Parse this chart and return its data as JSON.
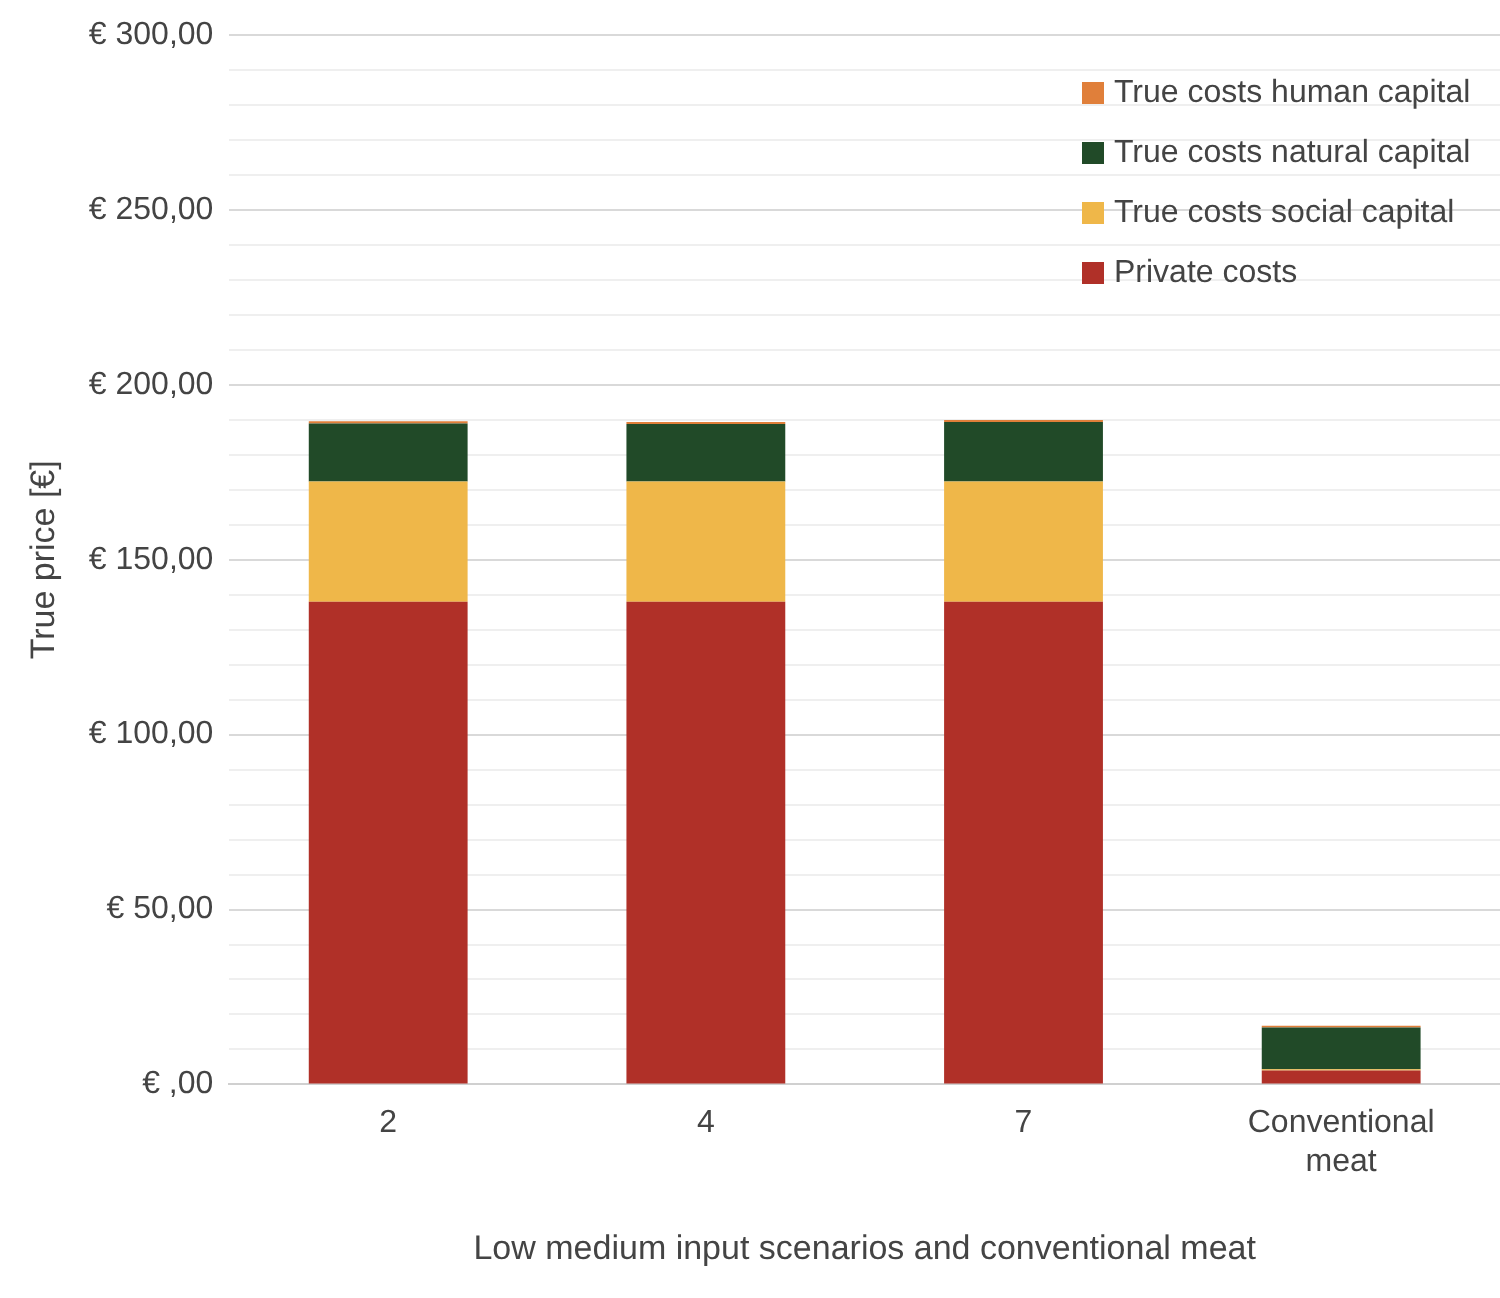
{
  "chart_data": {
    "type": "bar",
    "stacked": true,
    "xlabel": "Low medium input scenarios and conventional meat",
    "ylabel": "True price [€]",
    "categories": [
      "2",
      "4",
      "7",
      "Conventional meat"
    ],
    "series": [
      {
        "name": "Private costs",
        "color": "#b03028",
        "values": [
          138,
          138,
          138,
          4
        ]
      },
      {
        "name": "True costs social capital",
        "color": "#efb749",
        "values": [
          34.4,
          34.4,
          34.4,
          0.3
        ]
      },
      {
        "name": "True costs natural capital",
        "color": "#214a28",
        "values": [
          16.6,
          16.4,
          17,
          12
        ]
      },
      {
        "name": "True costs human capital",
        "color": "#e07f3a",
        "values": [
          0.6,
          0.6,
          0.6,
          0.5
        ]
      }
    ],
    "ylim": [
      0,
      300
    ],
    "yticks": [
      {
        "value": 0,
        "label": "€ ,00"
      },
      {
        "value": 10,
        "label": null
      },
      {
        "value": 20,
        "label": null
      },
      {
        "value": 30,
        "label": null
      },
      {
        "value": 40,
        "label": null
      },
      {
        "value": 50,
        "label": "€ 50,00"
      },
      {
        "value": 60,
        "label": null
      },
      {
        "value": 70,
        "label": null
      },
      {
        "value": 80,
        "label": null
      },
      {
        "value": 90,
        "label": null
      },
      {
        "value": 100,
        "label": "€ 100,00"
      },
      {
        "value": 110,
        "label": null
      },
      {
        "value": 120,
        "label": null
      },
      {
        "value": 130,
        "label": null
      },
      {
        "value": 140,
        "label": null
      },
      {
        "value": 150,
        "label": "€ 150,00"
      },
      {
        "value": 160,
        "label": null
      },
      {
        "value": 170,
        "label": null
      },
      {
        "value": 180,
        "label": null
      },
      {
        "value": 190,
        "label": null
      },
      {
        "value": 200,
        "label": "€ 200,00"
      },
      {
        "value": 210,
        "label": null
      },
      {
        "value": 220,
        "label": null
      },
      {
        "value": 230,
        "label": null
      },
      {
        "value": 240,
        "label": null
      },
      {
        "value": 250,
        "label": "€ 250,00"
      },
      {
        "value": 260,
        "label": null
      },
      {
        "value": 270,
        "label": null
      },
      {
        "value": 280,
        "label": null
      },
      {
        "value": 290,
        "label": null
      },
      {
        "value": 300,
        "label": "€ 300,00"
      }
    ],
    "grid": "y",
    "legend": "top right"
  }
}
